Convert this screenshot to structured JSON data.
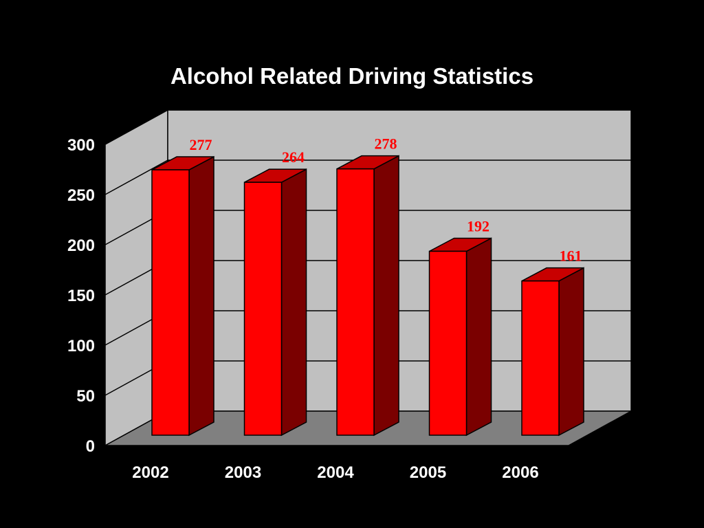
{
  "chart_data": {
    "type": "bar",
    "title": "Alcohol Related Driving Statistics",
    "xlabel": "",
    "ylabel": "",
    "categories": [
      "2002",
      "2003",
      "2004",
      "2005",
      "2006"
    ],
    "values": [
      277,
      264,
      278,
      192,
      161
    ],
    "value_labels": [
      "277",
      "264",
      "278",
      "192",
      "161"
    ],
    "yticks": [
      "0",
      "50",
      "100",
      "150",
      "200",
      "250",
      "300"
    ],
    "ylim": [
      0,
      300
    ],
    "grid": true,
    "legend": "none",
    "style": "3d",
    "colors": {
      "bar_front": "#ff0000",
      "bar_side": "#7a0000",
      "bar_top": "#c80000",
      "wall": "#c0c0c0",
      "floor": "#808080",
      "label": "#ff0000"
    }
  }
}
